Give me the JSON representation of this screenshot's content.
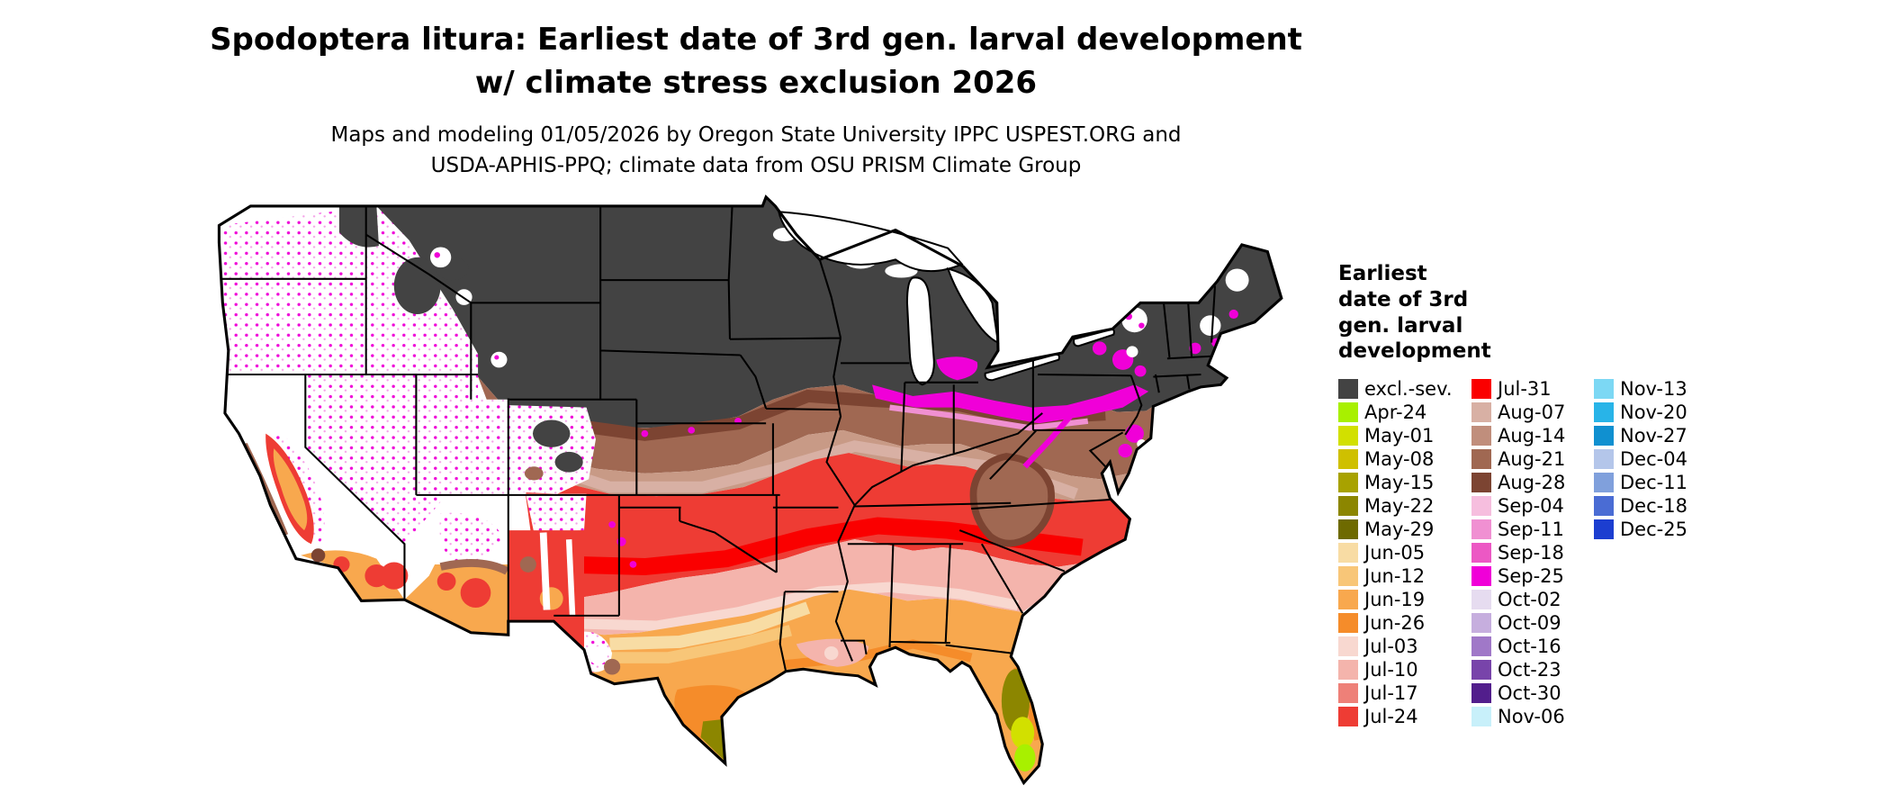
{
  "title": {
    "line1": "Spodoptera litura: Earliest date of 3rd gen. larval development",
    "line2": "w/ climate stress exclusion 2026"
  },
  "subtitle": {
    "line1": "Maps and modeling 01/05/2026 by Oregon State University IPPC USPEST.ORG and",
    "line2": "USDA-APHIS-PPQ; climate data from OSU PRISM Climate Group"
  },
  "legend": {
    "title_lines": [
      "Earliest",
      "date of 3rd",
      "gen. larval",
      "development"
    ],
    "columns": [
      {
        "items": [
          {
            "label": "excl.-sev.",
            "color": "#434343"
          },
          {
            "label": "Apr-24",
            "color": "#a8f000"
          },
          {
            "label": "May-01",
            "color": "#d2e000"
          },
          {
            "label": "May-08",
            "color": "#cfc000"
          },
          {
            "label": "May-15",
            "color": "#a8a200"
          },
          {
            "label": "May-22",
            "color": "#8c8600"
          },
          {
            "label": "May-29",
            "color": "#6e6a00"
          },
          {
            "label": "Jun-05",
            "color": "#f8dca4"
          },
          {
            "label": "Jun-12",
            "color": "#f8c678"
          },
          {
            "label": "Jun-19",
            "color": "#f8a84e"
          },
          {
            "label": "Jun-26",
            "color": "#f58c2a"
          },
          {
            "label": "Jul-03",
            "color": "#f8d8d0"
          },
          {
            "label": "Jul-10",
            "color": "#f4b4ac"
          },
          {
            "label": "Jul-17",
            "color": "#ee8078"
          },
          {
            "label": "Jul-24",
            "color": "#ee3c34"
          }
        ]
      },
      {
        "items": [
          {
            "label": "Jul-31",
            "color": "#fa0000"
          },
          {
            "label": "Aug-07",
            "color": "#d8b0a4"
          },
          {
            "label": "Aug-14",
            "color": "#c08e7c"
          },
          {
            "label": "Aug-21",
            "color": "#a06852"
          },
          {
            "label": "Aug-28",
            "color": "#7c4432"
          },
          {
            "label": "Sep-04",
            "color": "#f6bede"
          },
          {
            "label": "Sep-11",
            "color": "#f090d2"
          },
          {
            "label": "Sep-18",
            "color": "#ec58c4"
          },
          {
            "label": "Sep-25",
            "color": "#f000d8"
          },
          {
            "label": "Oct-02",
            "color": "#e6dcf0"
          },
          {
            "label": "Oct-09",
            "color": "#c6aede"
          },
          {
            "label": "Oct-16",
            "color": "#a078c8"
          },
          {
            "label": "Oct-23",
            "color": "#7844aa"
          },
          {
            "label": "Oct-30",
            "color": "#521e8c"
          },
          {
            "label": "Nov-06",
            "color": "#c8f0fa"
          }
        ]
      },
      {
        "items": [
          {
            "label": "Nov-13",
            "color": "#7cd8f4"
          },
          {
            "label": "Nov-20",
            "color": "#28b4e8"
          },
          {
            "label": "Nov-27",
            "color": "#1090d0"
          },
          {
            "label": "Dec-04",
            "color": "#b4c6ea"
          },
          {
            "label": "Dec-11",
            "color": "#80a0dc"
          },
          {
            "label": "Dec-18",
            "color": "#4a6cd4"
          },
          {
            "label": "Dec-25",
            "color": "#1c3ed0"
          }
        ]
      }
    ]
  }
}
